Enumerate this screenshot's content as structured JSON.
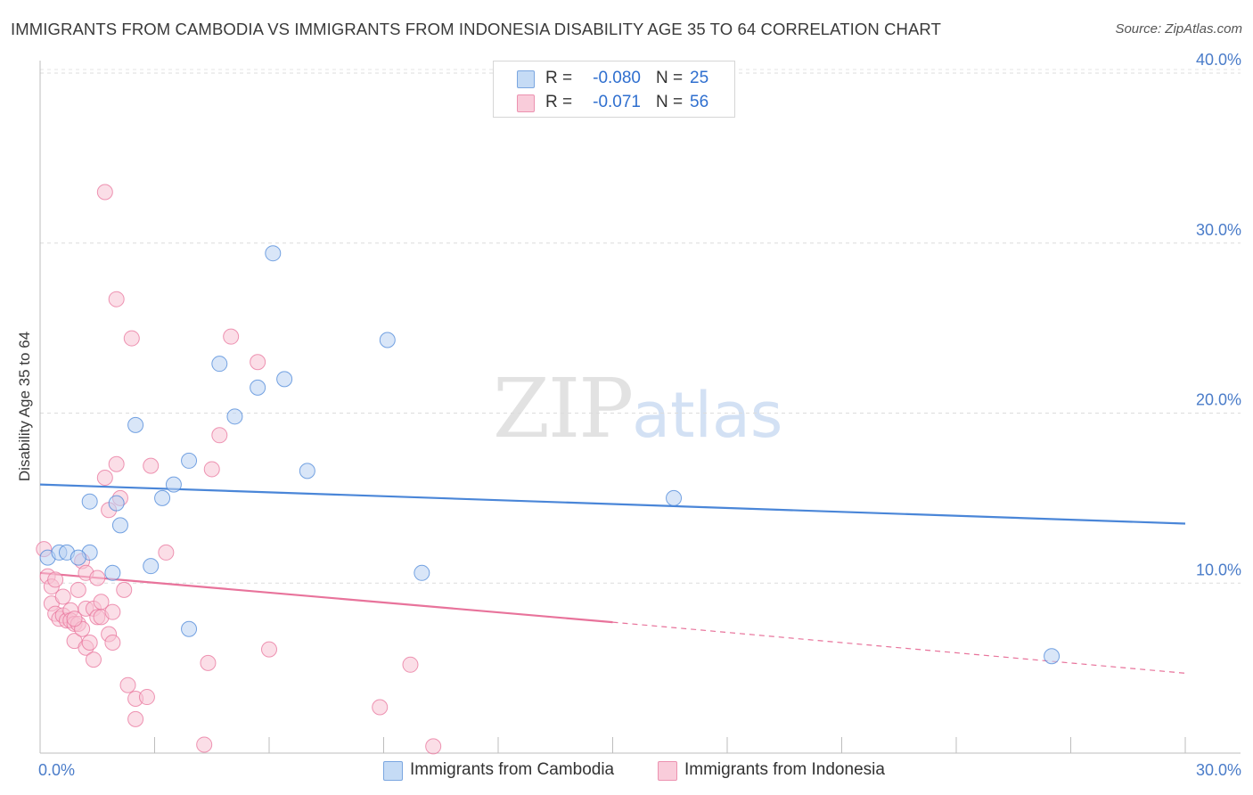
{
  "title": "IMMIGRANTS FROM CAMBODIA VS IMMIGRANTS FROM INDONESIA DISABILITY AGE 35 TO 64 CORRELATION CHART",
  "source": "Source: ZipAtlas.com",
  "watermark": {
    "zip": "ZIP",
    "atlas": "atlas"
  },
  "legend": {
    "rows": [
      {
        "r_label": "R =",
        "r_value": "-0.080",
        "n_label": "N =",
        "n_value": "25",
        "color": "#a9c8ef"
      },
      {
        "r_label": "R =",
        "r_value": "-0.071",
        "n_label": "N =",
        "n_value": "56",
        "color": "#f5b7ca"
      }
    ]
  },
  "chart_data": {
    "type": "scatter",
    "ylabel": "Disability Age 35 to 64",
    "xlim": [
      0,
      30
    ],
    "ylim": [
      0,
      40
    ],
    "y_ticks": [
      {
        "value": 10,
        "label": "10.0%"
      },
      {
        "value": 20,
        "label": "20.0%"
      },
      {
        "value": 30,
        "label": "30.0%"
      },
      {
        "value": 40,
        "label": "40.0%"
      }
    ],
    "x_ticks": [
      {
        "value": 0,
        "label": "0.0%"
      },
      {
        "value": 30,
        "label": "30.0%"
      }
    ],
    "x_minor_ticks": [
      0,
      3,
      6,
      9,
      12,
      15,
      18,
      21,
      24,
      27,
      30
    ],
    "grid": true,
    "legend_placement": "bottom",
    "series": [
      {
        "name": "Immigrants from Cambodia",
        "color": "#4a86d8",
        "fill": "#b9d2f2",
        "points": [
          [
            0.2,
            11.5
          ],
          [
            0.5,
            11.8
          ],
          [
            0.7,
            11.8
          ],
          [
            1.3,
            11.8
          ],
          [
            1.9,
            10.6
          ],
          [
            1.3,
            14.8
          ],
          [
            2.0,
            14.7
          ],
          [
            2.1,
            13.4
          ],
          [
            2.5,
            19.3
          ],
          [
            2.9,
            11.0
          ],
          [
            3.2,
            15.0
          ],
          [
            3.5,
            15.8
          ],
          [
            3.9,
            17.2
          ],
          [
            3.9,
            7.3
          ],
          [
            4.7,
            22.9
          ],
          [
            5.1,
            19.8
          ],
          [
            5.7,
            21.5
          ],
          [
            6.1,
            29.4
          ],
          [
            6.4,
            22.0
          ],
          [
            7.0,
            16.6
          ],
          [
            9.1,
            24.3
          ],
          [
            10.0,
            10.6
          ],
          [
            16.6,
            15.0
          ],
          [
            26.5,
            5.7
          ],
          [
            1.0,
            11.5
          ]
        ],
        "trend": {
          "x": [
            0,
            30
          ],
          "y": [
            15.8,
            13.5
          ],
          "style": "solid"
        }
      },
      {
        "name": "Immigrants from Indonesia",
        "color": "#e8739b",
        "fill": "#f7c3d3",
        "points": [
          [
            0.1,
            12.0
          ],
          [
            0.2,
            10.4
          ],
          [
            0.3,
            9.8
          ],
          [
            0.3,
            8.8
          ],
          [
            0.4,
            8.2
          ],
          [
            0.5,
            7.9
          ],
          [
            0.6,
            8.1
          ],
          [
            0.7,
            7.8
          ],
          [
            0.8,
            8.4
          ],
          [
            0.8,
            7.8
          ],
          [
            0.9,
            7.6
          ],
          [
            0.9,
            6.6
          ],
          [
            1.0,
            9.6
          ],
          [
            1.0,
            7.6
          ],
          [
            1.1,
            11.3
          ],
          [
            1.2,
            10.6
          ],
          [
            1.2,
            8.5
          ],
          [
            1.2,
            6.2
          ],
          [
            1.3,
            6.5
          ],
          [
            1.4,
            5.5
          ],
          [
            1.4,
            8.5
          ],
          [
            1.5,
            10.3
          ],
          [
            1.5,
            8.0
          ],
          [
            1.6,
            8.9
          ],
          [
            1.6,
            8.0
          ],
          [
            1.7,
            16.2
          ],
          [
            1.7,
            33.0
          ],
          [
            1.8,
            14.3
          ],
          [
            1.8,
            7.0
          ],
          [
            1.9,
            6.5
          ],
          [
            1.9,
            8.3
          ],
          [
            2.0,
            26.7
          ],
          [
            2.0,
            17.0
          ],
          [
            2.1,
            15.0
          ],
          [
            2.2,
            9.6
          ],
          [
            2.3,
            4.0
          ],
          [
            2.4,
            24.4
          ],
          [
            2.5,
            3.2
          ],
          [
            2.5,
            2.0
          ],
          [
            2.8,
            3.3
          ],
          [
            2.9,
            16.9
          ],
          [
            3.3,
            11.8
          ],
          [
            4.3,
            0.5
          ],
          [
            4.4,
            5.3
          ],
          [
            4.5,
            16.7
          ],
          [
            4.7,
            18.7
          ],
          [
            5.0,
            24.5
          ],
          [
            5.7,
            23.0
          ],
          [
            6.0,
            6.1
          ],
          [
            8.9,
            2.7
          ],
          [
            9.7,
            5.2
          ],
          [
            10.3,
            0.4
          ],
          [
            0.6,
            9.2
          ],
          [
            1.1,
            7.3
          ],
          [
            0.4,
            10.2
          ],
          [
            0.9,
            7.9
          ]
        ],
        "trend": {
          "x": [
            0,
            15
          ],
          "y": [
            10.6,
            7.7
          ],
          "style": "solid"
        },
        "trend_extension": {
          "x": [
            15,
            30
          ],
          "y": [
            7.7,
            4.7
          ],
          "style": "dashed"
        }
      }
    ]
  }
}
